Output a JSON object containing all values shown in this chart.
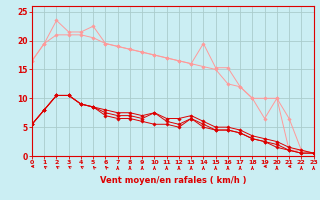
{
  "background_color": "#cbeef3",
  "grid_color": "#aacccc",
  "xlabel": "Vent moyen/en rafales ( km/h )",
  "xlim": [
    0,
    23
  ],
  "ylim": [
    0,
    26
  ],
  "yticks": [
    0,
    5,
    10,
    15,
    20,
    25
  ],
  "xticks": [
    0,
    1,
    2,
    3,
    4,
    5,
    6,
    7,
    8,
    9,
    10,
    11,
    12,
    13,
    14,
    15,
    16,
    17,
    18,
    19,
    20,
    21,
    22,
    23
  ],
  "line1_y": [
    16.5,
    19.5,
    21.0,
    21.0,
    21.0,
    20.5,
    19.5,
    19.0,
    18.5,
    18.0,
    17.5,
    17.0,
    16.5,
    16.0,
    15.5,
    15.0,
    12.5,
    12.0,
    10.0,
    10.0,
    10.0,
    6.5,
    1.0,
    0.5
  ],
  "line2_y": [
    16.5,
    19.5,
    23.5,
    21.5,
    21.5,
    22.5,
    19.5,
    19.0,
    18.5,
    18.0,
    17.5,
    17.0,
    16.5,
    16.0,
    19.5,
    15.3,
    15.3,
    12.0,
    10.0,
    6.5,
    10.0,
    1.0,
    1.0,
    0.5
  ],
  "line3_y": [
    5.5,
    8.0,
    10.5,
    10.5,
    9.0,
    8.5,
    7.0,
    6.5,
    6.5,
    6.0,
    5.5,
    5.5,
    5.0,
    6.5,
    5.0,
    4.5,
    4.5,
    4.0,
    3.0,
    2.5,
    1.5,
    1.0,
    0.5,
    0.5
  ],
  "line4_y": [
    5.5,
    8.0,
    10.5,
    10.5,
    9.0,
    8.5,
    7.5,
    7.0,
    7.0,
    6.5,
    7.5,
    6.0,
    5.5,
    6.5,
    5.5,
    4.5,
    4.5,
    4.0,
    3.0,
    2.5,
    2.0,
    1.0,
    0.5,
    0.5
  ],
  "line5_y": [
    5.5,
    8.0,
    10.5,
    10.5,
    9.0,
    8.5,
    8.0,
    7.5,
    7.5,
    7.0,
    7.5,
    6.5,
    6.5,
    7.0,
    6.0,
    5.0,
    5.0,
    4.5,
    3.5,
    3.0,
    2.5,
    1.5,
    1.0,
    0.5
  ],
  "line_color_light": "#ff9999",
  "line_color_dark": "#dd0000",
  "arrow_angles": [
    270,
    225,
    225,
    225,
    225,
    210,
    210,
    180,
    180,
    180,
    180,
    180,
    180,
    180,
    180,
    180,
    180,
    180,
    180,
    270,
    180,
    270,
    180,
    180
  ]
}
